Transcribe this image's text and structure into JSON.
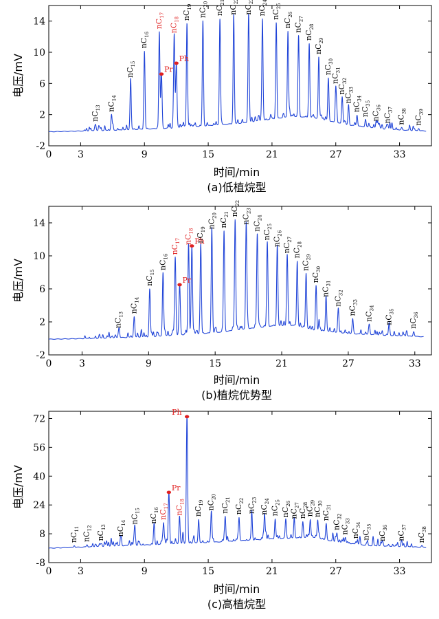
{
  "chart_data": [
    {
      "type": "line",
      "caption": "(a)低植烷型",
      "xlabel": "时间/min",
      "ylabel": "电压/mV",
      "xlim": [
        0,
        36
      ],
      "ylim": [
        -2,
        16
      ],
      "xticks": [
        0,
        3,
        9,
        15,
        21,
        27,
        33
      ],
      "yticks": [
        -2,
        2,
        6,
        10,
        14
      ],
      "baseline": [
        [
          0,
          -0.2
        ],
        [
          6,
          0.0
        ],
        [
          12,
          0.3
        ],
        [
          18,
          0.9
        ],
        [
          23,
          1.8
        ],
        [
          25,
          1.6
        ],
        [
          28,
          0.7
        ],
        [
          32,
          0.1
        ],
        [
          35.5,
          -0.1
        ]
      ],
      "peaks": [
        {
          "x": 4.4,
          "h": 0.8,
          "prefix": "nC",
          "sub": "13"
        },
        {
          "x": 5.9,
          "h": 2.0,
          "prefix": "nC",
          "sub": "14"
        },
        {
          "x": 7.7,
          "h": 6.3,
          "prefix": "nC",
          "sub": "15"
        },
        {
          "x": 9.0,
          "h": 10.0,
          "prefix": "nC",
          "sub": "16"
        },
        {
          "x": 10.4,
          "h": 12.4,
          "prefix": "nC",
          "sub": "17",
          "red": true
        },
        {
          "x": 11.8,
          "h": 11.8,
          "prefix": "nC",
          "sub": "18",
          "red": true
        },
        {
          "x": 13.0,
          "h": 13.3,
          "prefix": "nC",
          "sub": "19"
        },
        {
          "x": 14.5,
          "h": 13.5,
          "prefix": "nC",
          "sub": "20"
        },
        {
          "x": 16.1,
          "h": 13.6,
          "prefix": "nC",
          "sub": "21"
        },
        {
          "x": 17.4,
          "h": 13.6,
          "prefix": "nC",
          "sub": "22"
        },
        {
          "x": 18.8,
          "h": 13.4,
          "prefix": "nC",
          "sub": "23"
        },
        {
          "x": 20.1,
          "h": 13.0,
          "prefix": "nC",
          "sub": "24"
        },
        {
          "x": 21.4,
          "h": 12.3,
          "prefix": "nC",
          "sub": "25"
        },
        {
          "x": 22.5,
          "h": 11.0,
          "prefix": "nC",
          "sub": "26"
        },
        {
          "x": 23.5,
          "h": 10.4,
          "prefix": "nC",
          "sub": "27"
        },
        {
          "x": 24.5,
          "h": 9.5,
          "prefix": "nC",
          "sub": "28"
        },
        {
          "x": 25.4,
          "h": 7.9,
          "prefix": "nC",
          "sub": "29"
        },
        {
          "x": 26.3,
          "h": 5.5,
          "prefix": "nC",
          "sub": "30"
        },
        {
          "x": 27.0,
          "h": 4.6,
          "prefix": "nC",
          "sub": "31"
        },
        {
          "x": 27.6,
          "h": 3.4,
          "prefix": "nC",
          "sub": "32"
        },
        {
          "x": 28.2,
          "h": 2.4,
          "prefix": "nC",
          "sub": "33"
        },
        {
          "x": 29.0,
          "h": 1.4,
          "prefix": "nC",
          "sub": "34"
        },
        {
          "x": 29.8,
          "h": 0.9,
          "prefix": "nC",
          "sub": "35"
        },
        {
          "x": 30.8,
          "h": 0.5,
          "prefix": "nC",
          "sub": "36"
        },
        {
          "x": 31.9,
          "h": 0.4,
          "prefix": "nC",
          "sub": "37"
        },
        {
          "x": 33.2,
          "h": 0.3,
          "prefix": "nC",
          "sub": "38"
        },
        {
          "x": 34.8,
          "h": 0.3,
          "prefix": "nC",
          "sub": "39"
        }
      ],
      "special": [
        {
          "label": "Pr",
          "x": 10.6,
          "y": 7.2
        },
        {
          "label": "Ph",
          "x": 12.0,
          "y": 8.6
        }
      ]
    },
    {
      "type": "line",
      "caption": "(b)植烷优势型",
      "xlabel": "时间/min",
      "ylabel": "电压/mV",
      "xlim": [
        0,
        34.5
      ],
      "ylim": [
        -2,
        16
      ],
      "xticks": [
        0,
        3,
        9,
        15,
        21,
        27,
        33
      ],
      "yticks": [
        -2,
        2,
        6,
        10,
        14
      ],
      "baseline": [
        [
          0,
          -0.1
        ],
        [
          4,
          0.0
        ],
        [
          9,
          0.2
        ],
        [
          15,
          0.7
        ],
        [
          20,
          1.5
        ],
        [
          22,
          1.6
        ],
        [
          24,
          1.0
        ],
        [
          27,
          0.6
        ],
        [
          30,
          0.4
        ],
        [
          33.8,
          0.2
        ]
      ],
      "peaks": [
        {
          "x": 6.3,
          "h": 0.8,
          "prefix": "nC",
          "sub": "13"
        },
        {
          "x": 7.7,
          "h": 2.5,
          "prefix": "nC",
          "sub": "14"
        },
        {
          "x": 9.1,
          "h": 5.8,
          "prefix": "nC",
          "sub": "15"
        },
        {
          "x": 10.3,
          "h": 7.6,
          "prefix": "nC",
          "sub": "16"
        },
        {
          "x": 11.4,
          "h": 9.4,
          "prefix": "nC",
          "sub": "17",
          "red": true
        },
        {
          "x": 12.6,
          "h": 10.5,
          "prefix": "nC",
          "sub": "18",
          "red": true
        },
        {
          "x": 13.7,
          "h": 10.6,
          "prefix": "nC",
          "sub": "19"
        },
        {
          "x": 14.7,
          "h": 12.2,
          "prefix": "nC",
          "sub": "20"
        },
        {
          "x": 15.8,
          "h": 12.2,
          "prefix": "nC",
          "sub": "21"
        },
        {
          "x": 16.8,
          "h": 13.4,
          "prefix": "nC",
          "sub": "22"
        },
        {
          "x": 17.8,
          "h": 12.3,
          "prefix": "nC",
          "sub": "23"
        },
        {
          "x": 18.8,
          "h": 11.3,
          "prefix": "nC",
          "sub": "24"
        },
        {
          "x": 19.7,
          "h": 10.1,
          "prefix": "nC",
          "sub": "25"
        },
        {
          "x": 20.6,
          "h": 9.2,
          "prefix": "nC",
          "sub": "26"
        },
        {
          "x": 21.5,
          "h": 8.4,
          "prefix": "nC",
          "sub": "27"
        },
        {
          "x": 22.4,
          "h": 7.9,
          "prefix": "nC",
          "sub": "28"
        },
        {
          "x": 23.2,
          "h": 6.6,
          "prefix": "nC",
          "sub": "29"
        },
        {
          "x": 24.1,
          "h": 5.4,
          "prefix": "nC",
          "sub": "30"
        },
        {
          "x": 25.0,
          "h": 3.8,
          "prefix": "nC",
          "sub": "31"
        },
        {
          "x": 26.1,
          "h": 2.8,
          "prefix": "nC",
          "sub": "32"
        },
        {
          "x": 27.4,
          "h": 1.8,
          "prefix": "nC",
          "sub": "33"
        },
        {
          "x": 28.9,
          "h": 1.2,
          "prefix": "nC",
          "sub": "34"
        },
        {
          "x": 30.7,
          "h": 0.9,
          "prefix": "nC",
          "sub": "35"
        },
        {
          "x": 32.9,
          "h": 0.6,
          "prefix": "nC",
          "sub": "36"
        }
      ],
      "special": [
        {
          "label": "Pr",
          "x": 11.8,
          "y": 6.5
        },
        {
          "label": "Ph",
          "x": 12.9,
          "y": 11.2
        }
      ]
    },
    {
      "type": "line",
      "caption": "(c)高植烷型",
      "xlabel": "时间/min",
      "ylabel": "电压/mV",
      "xlim": [
        0,
        36
      ],
      "ylim": [
        -8,
        76
      ],
      "xticks": [
        0,
        3,
        9,
        15,
        21,
        27,
        33
      ],
      "yticks": [
        -8,
        8,
        24,
        40,
        56,
        72
      ],
      "baseline": [
        [
          0,
          0.0
        ],
        [
          5,
          1.0
        ],
        [
          10,
          2.0
        ],
        [
          16,
          3.5
        ],
        [
          22,
          5.5
        ],
        [
          25,
          6.0
        ],
        [
          27,
          3.5
        ],
        [
          30,
          1.5
        ],
        [
          35.5,
          0.5
        ]
      ],
      "peaks": [
        {
          "x": 2.4,
          "h": 1.0,
          "prefix": "nC",
          "sub": "11"
        },
        {
          "x": 3.6,
          "h": 1.2,
          "prefix": "nC",
          "sub": "12"
        },
        {
          "x": 4.9,
          "h": 1.5,
          "prefix": "nC",
          "sub": "13"
        },
        {
          "x": 6.8,
          "h": 3.5,
          "prefix": "nC",
          "sub": "14"
        },
        {
          "x": 8.1,
          "h": 10.0,
          "prefix": "nC",
          "sub": "15"
        },
        {
          "x": 9.9,
          "h": 10.0,
          "prefix": "nC",
          "sub": "16"
        },
        {
          "x": 10.8,
          "h": 12.0,
          "prefix": "nC",
          "sub": "17",
          "red": true
        },
        {
          "x": 12.3,
          "h": 14.0,
          "prefix": "nC",
          "sub": "18",
          "red": true
        },
        {
          "x": 14.1,
          "h": 13.0,
          "prefix": "nC",
          "sub": "19"
        },
        {
          "x": 15.3,
          "h": 16.0,
          "prefix": "nC",
          "sub": "20"
        },
        {
          "x": 16.6,
          "h": 14.0,
          "prefix": "nC",
          "sub": "21"
        },
        {
          "x": 17.9,
          "h": 13.0,
          "prefix": "nC",
          "sub": "22"
        },
        {
          "x": 19.1,
          "h": 13.0,
          "prefix": "nC",
          "sub": "23"
        },
        {
          "x": 20.3,
          "h": 12.0,
          "prefix": "nC",
          "sub": "24"
        },
        {
          "x": 21.3,
          "h": 11.0,
          "prefix": "nC",
          "sub": "25"
        },
        {
          "x": 22.3,
          "h": 10.0,
          "prefix": "nC",
          "sub": "26"
        },
        {
          "x": 23.1,
          "h": 9.0,
          "prefix": "nC",
          "sub": "27"
        },
        {
          "x": 23.9,
          "h": 9.0,
          "prefix": "nC",
          "sub": "28"
        },
        {
          "x": 24.6,
          "h": 10.0,
          "prefix": "nC",
          "sub": "29"
        },
        {
          "x": 25.3,
          "h": 10.0,
          "prefix": "nC",
          "sub": "30"
        },
        {
          "x": 26.1,
          "h": 9.0,
          "prefix": "nC",
          "sub": "31"
        },
        {
          "x": 27.1,
          "h": 5.0,
          "prefix": "nC",
          "sub": "32"
        },
        {
          "x": 27.9,
          "h": 3.0,
          "prefix": "nC",
          "sub": "33"
        },
        {
          "x": 28.9,
          "h": 1.5,
          "prefix": "nC",
          "sub": "34"
        },
        {
          "x": 29.9,
          "h": 1.2,
          "prefix": "nC",
          "sub": "35"
        },
        {
          "x": 31.4,
          "h": 1.0,
          "prefix": "nC",
          "sub": "36"
        },
        {
          "x": 33.2,
          "h": 1.5,
          "prefix": "nC",
          "sub": "37"
        },
        {
          "x": 35.1,
          "h": 0.8,
          "prefix": "nC",
          "sub": "38"
        }
      ],
      "special": [
        {
          "label": "Pr",
          "x": 11.3,
          "y": 31.0
        },
        {
          "label": "Ph",
          "x": 13.0,
          "y": 73.0
        }
      ]
    }
  ]
}
